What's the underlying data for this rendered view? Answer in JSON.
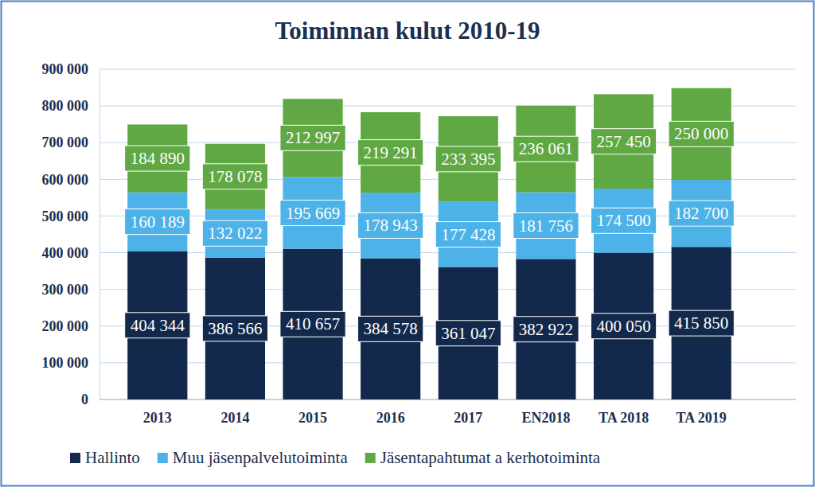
{
  "chart_data": {
    "type": "bar",
    "title": "Toiminnan kulut 2010-19",
    "categories": [
      "2013",
      "2014",
      "2015",
      "2016",
      "2017",
      "EN2018",
      "TA 2018",
      "TA 2019"
    ],
    "series": [
      {
        "name": "Hallinto",
        "color": "#13294b",
        "values": [
          404344,
          386566,
          410657,
          384578,
          361047,
          382922,
          400050,
          415850
        ],
        "value_labels": [
          "404 344",
          "386 566",
          "410 657",
          "384 578",
          "361 047",
          "382 922",
          "400 050",
          "415 850"
        ]
      },
      {
        "name": "Muu jäsenpalvelutoiminta",
        "color": "#4cb2e8",
        "values": [
          160189,
          132022,
          195669,
          178943,
          177428,
          181756,
          174500,
          182700
        ],
        "value_labels": [
          "160 189",
          "132 022",
          "195 669",
          "178 943",
          "177 428",
          "181 756",
          "174 500",
          "182 700"
        ]
      },
      {
        "name": "Jäsentapahtumat a kerhotoiminta",
        "color": "#60a844",
        "values": [
          184890,
          178078,
          212997,
          219291,
          233395,
          236061,
          257450,
          250000
        ],
        "value_labels": [
          "184 890",
          "178 078",
          "212 997",
          "219 291",
          "233 395",
          "236 061",
          "257 450",
          "250 000"
        ]
      }
    ],
    "ylim": [
      0,
      900000
    ],
    "yticks": [
      0,
      {
        "value": 100000,
        "label": "100 000"
      },
      {
        "value": 200000,
        "label": "200 000"
      },
      {
        "value": 300000,
        "label": "300 000"
      },
      {
        "value": 400000,
        "label": "400 000"
      },
      {
        "value": 500000,
        "label": "500 000"
      },
      {
        "value": 600000,
        "label": "600 000"
      },
      {
        "value": 700000,
        "label": "700 000"
      },
      {
        "value": 800000,
        "label": "800 000"
      },
      {
        "value": 900000,
        "label": "900 000"
      }
    ],
    "stacked": true,
    "data_labels": true,
    "grid": true,
    "legend": "bottom"
  }
}
